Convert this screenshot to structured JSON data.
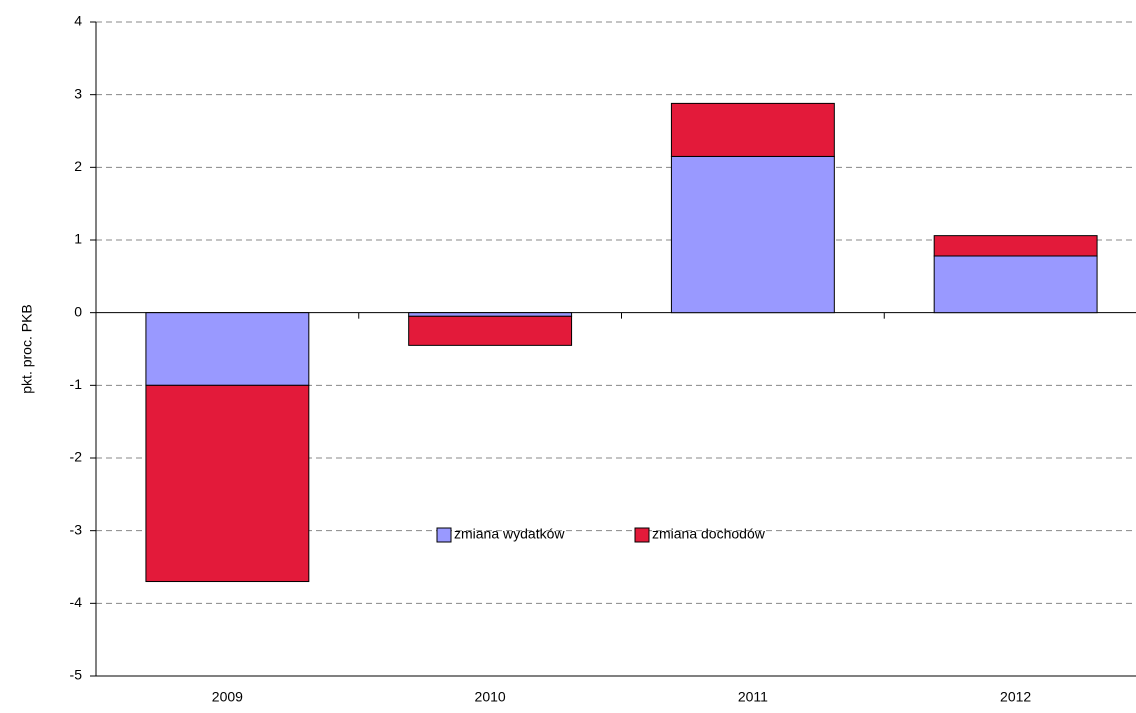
{
  "chart_data": {
    "type": "stacked_bar",
    "y_label": "pkt. proc. PKB",
    "categories": [
      "2009",
      "2010",
      "2011",
      "2012"
    ],
    "series": [
      {
        "name": "zmiana wydatków",
        "color": "#9999ff",
        "values": [
          -1.0,
          -0.05,
          2.15,
          0.78
        ]
      },
      {
        "name": "zmiana dochodów",
        "color": "#e31a3a",
        "values": [
          -2.7,
          -0.4,
          0.73,
          0.28
        ]
      }
    ],
    "ylim": [
      -5,
      4
    ],
    "yticks": [
      -5,
      -4,
      -3,
      -2,
      -1,
      0,
      1,
      2,
      3,
      4
    ],
    "grid": true,
    "legend": "center"
  }
}
